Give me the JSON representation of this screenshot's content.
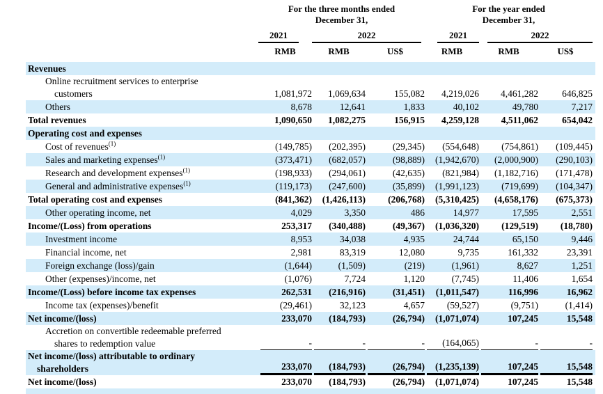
{
  "colors": {
    "row_highlight": "#d3ecfa",
    "text": "#000000",
    "background": "#ffffff"
  },
  "header": {
    "group1_title": "For the three months ended",
    "group1_subtitle": "December 31,",
    "group2_title": "For the year ended",
    "group2_subtitle": "December 31,",
    "year_3mo_2021": "2021",
    "year_3mo_2022": "2022",
    "year_fy_2021": "2021",
    "year_fy_2022": "2022",
    "currencies": [
      "RMB",
      "RMB",
      "US$",
      "RMB",
      "RMB",
      "US$"
    ]
  },
  "table": {
    "rows": [
      {
        "bg": "blue",
        "bold": true,
        "section": true,
        "label": "Revenues"
      },
      {
        "bg": "white",
        "indent": 1,
        "lines": [
          "Online recruitment services to enterprise",
          "customers"
        ],
        "values": [
          "1,081,972",
          "1,069,634",
          "155,082",
          "4,219,026",
          "4,461,282",
          "646,825"
        ]
      },
      {
        "bg": "blue",
        "indent": 1,
        "label": "Others",
        "values": [
          "8,678",
          "12,641",
          "1,833",
          "40,102",
          "49,780",
          "7,217"
        ]
      },
      {
        "bg": "white",
        "bold": true,
        "label": "Total revenues",
        "values": [
          "1,090,650",
          "1,082,275",
          "156,915",
          "4,259,128",
          "4,511,062",
          "654,042"
        ]
      },
      {
        "bg": "blue",
        "bold": true,
        "section": true,
        "label": "Operating cost and expenses"
      },
      {
        "bg": "white",
        "indent": 1,
        "label": "Cost of revenues",
        "sup": "(1)",
        "values": [
          "(149,785)",
          "(202,395)",
          "(29,345)",
          "(554,648)",
          "(754,861)",
          "(109,445)"
        ]
      },
      {
        "bg": "blue",
        "indent": 1,
        "label": "Sales and marketing expenses",
        "sup": "(1)",
        "values": [
          "(373,471)",
          "(682,057)",
          "(98,889)",
          "(1,942,670)",
          "(2,000,900)",
          "(290,103)"
        ]
      },
      {
        "bg": "white",
        "indent": 1,
        "label": "Research and development expenses",
        "sup": "(1)",
        "values": [
          "(198,933)",
          "(294,061)",
          "(42,635)",
          "(821,984)",
          "(1,182,716)",
          "(171,478)"
        ]
      },
      {
        "bg": "blue",
        "indent": 1,
        "label": "General and administrative expenses",
        "sup": "(1)",
        "values": [
          "(119,173)",
          "(247,600)",
          "(35,899)",
          "(1,991,123)",
          "(719,699)",
          "(104,347)"
        ]
      },
      {
        "bg": "white",
        "bold": true,
        "label": "Total operating cost and expenses",
        "values": [
          "(841,362)",
          "(1,426,113)",
          "(206,768)",
          "(5,310,425)",
          "(4,658,176)",
          "(675,373)"
        ]
      },
      {
        "bg": "blue",
        "indent": 1,
        "label": "Other operating income, net",
        "values": [
          "4,029",
          "3,350",
          "486",
          "14,977",
          "17,595",
          "2,551"
        ]
      },
      {
        "bg": "white",
        "bold": true,
        "label": "Income/(Loss) from operations",
        "values": [
          "253,317",
          "(340,488)",
          "(49,367)",
          "(1,036,320)",
          "(129,519)",
          "(18,780)"
        ]
      },
      {
        "bg": "blue",
        "indent": 1,
        "label": "Investment income",
        "values": [
          "8,953",
          "34,038",
          "4,935",
          "24,744",
          "65,150",
          "9,446"
        ]
      },
      {
        "bg": "white",
        "indent": 1,
        "label": "Financial income, net",
        "values": [
          "2,981",
          "83,319",
          "12,080",
          "9,735",
          "161,332",
          "23,391"
        ]
      },
      {
        "bg": "blue",
        "indent": 1,
        "label": "Foreign exchange (loss)/gain",
        "values": [
          "(1,644)",
          "(1,509)",
          "(219)",
          "(1,961)",
          "8,627",
          "1,251"
        ]
      },
      {
        "bg": "white",
        "indent": 1,
        "label": "Other (expenses)/income, net",
        "values": [
          "(1,076)",
          "7,724",
          "1,120",
          "(7,745)",
          "11,406",
          "1,654"
        ]
      },
      {
        "bg": "blue",
        "bold": true,
        "label": "Income/(Loss) before income tax expenses",
        "values": [
          "262,531",
          "(216,916)",
          "(31,451)",
          "(1,011,547)",
          "116,996",
          "16,962"
        ]
      },
      {
        "bg": "white",
        "indent": 1,
        "label": "Income tax (expenses)/benefit",
        "values": [
          "(29,461)",
          "32,123",
          "4,657",
          "(59,527)",
          "(9,751)",
          "(1,414)"
        ]
      },
      {
        "bg": "blue",
        "bold": true,
        "label": "Net income/(loss)",
        "values": [
          "233,070",
          "(184,793)",
          "(26,794)",
          "(1,071,074)",
          "107,245",
          "15,548"
        ]
      },
      {
        "bg": "white",
        "indent": 1,
        "lines": [
          "Accretion on convertible redeemable preferred",
          "shares to redemption value"
        ],
        "values": [
          "-",
          "-",
          "-",
          "(164,065)",
          "-",
          "-"
        ],
        "underline": "thin"
      },
      {
        "bg": "blue",
        "bold": true,
        "lines": [
          "Net income/(loss) attributable to ordinary",
          "shareholders"
        ],
        "values": [
          "233,070",
          "(184,793)",
          "(26,794)",
          "(1,235,139)",
          "107,245",
          "15,548"
        ],
        "underline": "thick"
      },
      {
        "bg": "white",
        "bold": true,
        "label": "Net income/(loss)",
        "values": [
          "233,070",
          "(184,793)",
          "(26,794)",
          "(1,071,074)",
          "107,245",
          "15,548"
        ]
      },
      {
        "bg": "blue",
        "strip": true
      }
    ]
  }
}
